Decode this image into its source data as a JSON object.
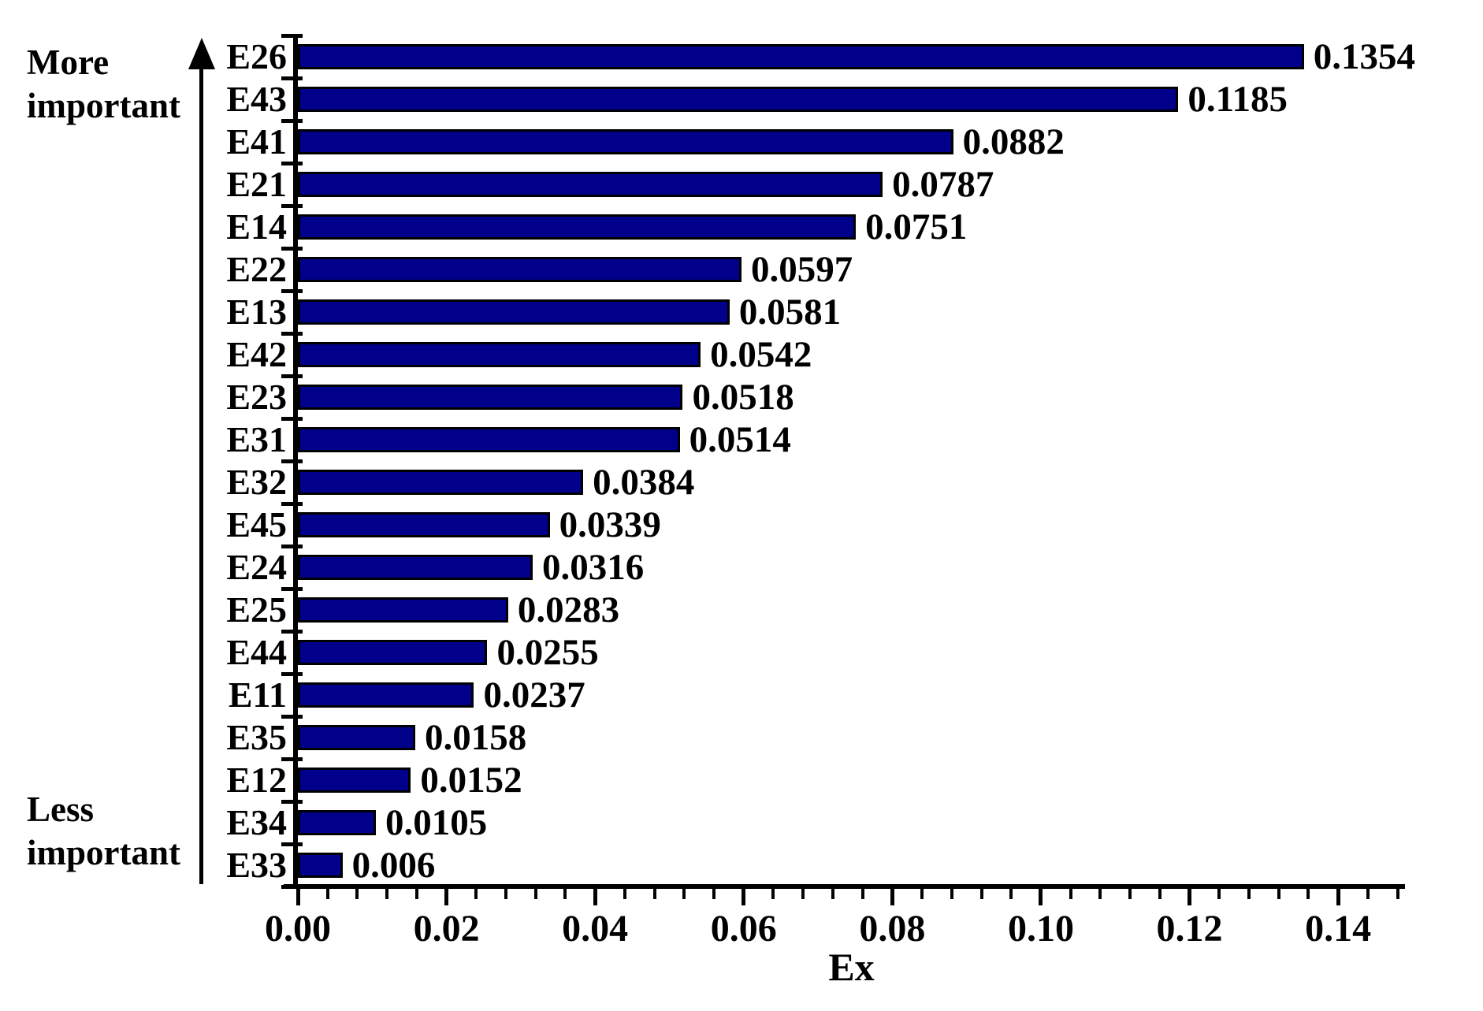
{
  "chart_data": {
    "type": "bar",
    "orientation": "horizontal",
    "title": "",
    "xlabel": "Ex",
    "ylabel": "",
    "categories": [
      "E26",
      "E43",
      "E41",
      "E21",
      "E14",
      "E22",
      "E13",
      "E42",
      "E23",
      "E31",
      "E32",
      "E45",
      "E24",
      "E25",
      "E44",
      "E11",
      "E35",
      "E12",
      "E34",
      "E33"
    ],
    "values": [
      0.1354,
      0.1185,
      0.0882,
      0.0787,
      0.0751,
      0.0597,
      0.0581,
      0.0542,
      0.0518,
      0.0514,
      0.0384,
      0.0339,
      0.0316,
      0.0283,
      0.0255,
      0.0237,
      0.0158,
      0.0152,
      0.0105,
      0.006
    ],
    "value_labels": [
      "0.1354",
      "0.1185",
      "0.0882",
      "0.0787",
      "0.0751",
      "0.0597",
      "0.0581",
      "0.0542",
      "0.0518",
      "0.0514",
      "0.0384",
      "0.0339",
      "0.0316",
      "0.0283",
      "0.0255",
      "0.0237",
      "0.0158",
      "0.0152",
      "0.0105",
      "0.006"
    ],
    "x_tick_values": [
      0.0,
      0.02,
      0.04,
      0.06,
      0.08,
      0.1,
      0.12,
      0.14
    ],
    "x_tick_labels": [
      "0.00",
      "0.02",
      "0.04",
      "0.06",
      "0.08",
      "0.10",
      "0.12",
      "0.14"
    ],
    "x_minor_tick_step": 0.004,
    "xlim": [
      0,
      0.149
    ],
    "grid": false,
    "legend": "none",
    "sort_order": "descending",
    "bar_color": "#00008b",
    "bar_border_color": "#000000",
    "axis_color": "#000000",
    "text_color": "#000000",
    "annotations": {
      "top_arrow_label": "More important",
      "bottom_arrow_label": "Less important"
    }
  }
}
